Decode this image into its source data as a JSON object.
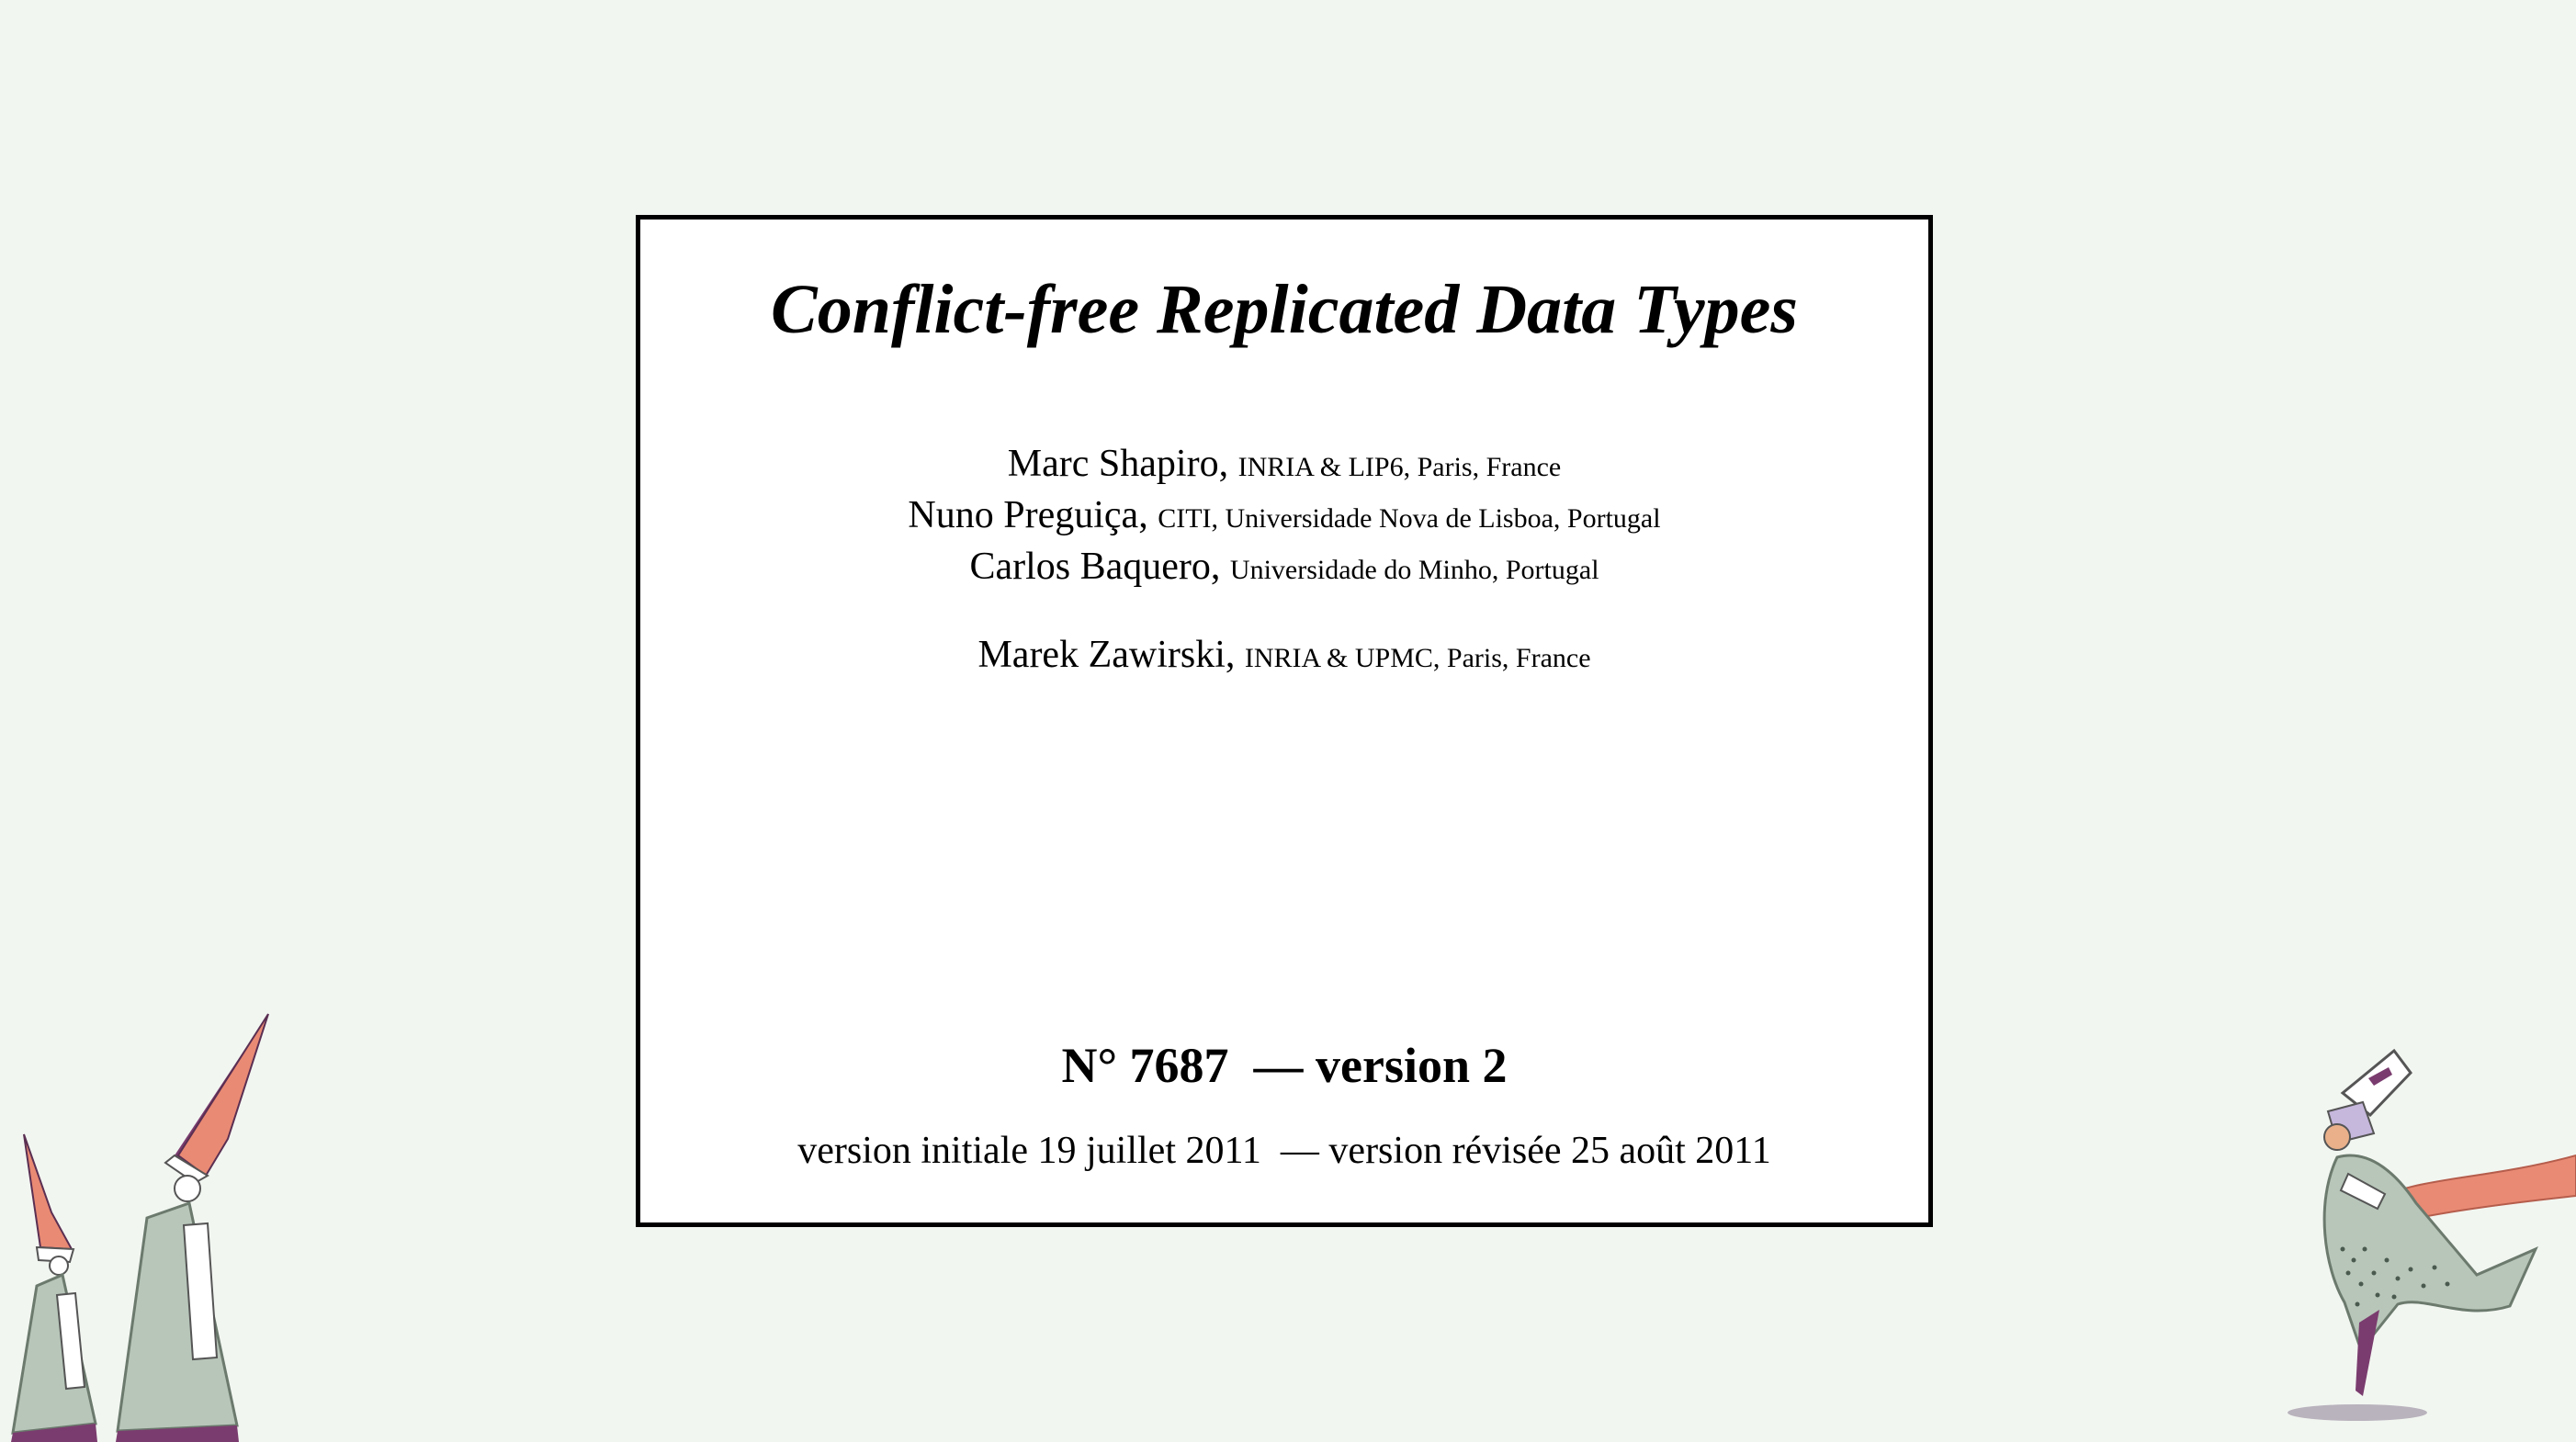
{
  "cover": {
    "title": "Conflict-free Replicated Data Types",
    "authors": [
      {
        "name": "Marc Shapiro,",
        "affiliation": "INRIA & LIP6, Paris, France"
      },
      {
        "name": "Nuno Preguiça,",
        "affiliation": "CITI, Universidade Nova de Lisboa, Portugal"
      },
      {
        "name": "Carlos Baquero,",
        "affiliation": "Universidade do Minho, Portugal"
      },
      {
        "name": "Marek Zawirski,",
        "affiliation": "INRIA & UPMC, Paris, France"
      }
    ],
    "report_number": "N° 7687  — version 2",
    "dates": "version initiale 19 juillet 2011  — version révisée 25 août 2011"
  },
  "colors": {
    "background": "#f2f6f1",
    "illustration_green": "#b7c6b9",
    "illustration_salmon": "#e98a74",
    "illustration_purple": "#7a3c6e"
  }
}
